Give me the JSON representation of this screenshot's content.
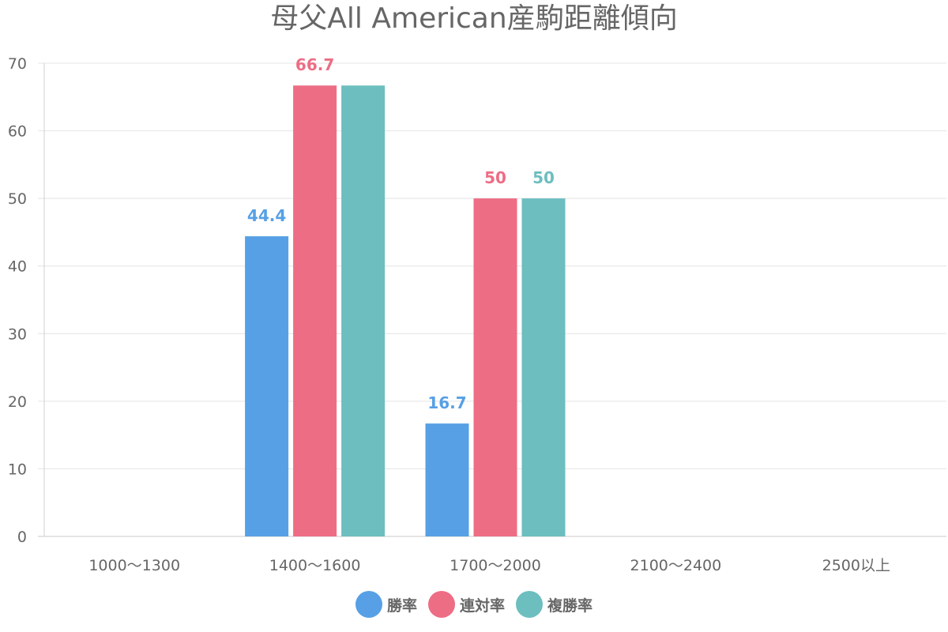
{
  "chart_data": {
    "type": "bar",
    "title": "母父All American産駒距離傾向",
    "categories": [
      "1000〜1300",
      "1400〜1600",
      "1700〜2000",
      "2100〜2400",
      "2500以上"
    ],
    "series": [
      {
        "name": "勝率",
        "color": "#57a0e5",
        "values": [
          null,
          44.4,
          16.7,
          null,
          null
        ]
      },
      {
        "name": "連対率",
        "color": "#ed6d85",
        "values": [
          null,
          66.7,
          50,
          null,
          null
        ]
      },
      {
        "name": "複勝率",
        "color": "#6dbebf",
        "values": [
          null,
          66.7,
          50,
          null,
          null
        ]
      }
    ],
    "data_labels": [
      [
        null,
        "44.4",
        "16.7",
        null,
        null
      ],
      [
        null,
        "66.7",
        "50",
        null,
        null
      ],
      [
        null,
        "",
        "50",
        null,
        null
      ]
    ],
    "ylim": [
      0,
      70
    ],
    "yticks": [
      0,
      10,
      20,
      30,
      40,
      50,
      60,
      70
    ],
    "xlabel": "",
    "ylabel": "",
    "grid": true,
    "legend_position": "bottom"
  }
}
